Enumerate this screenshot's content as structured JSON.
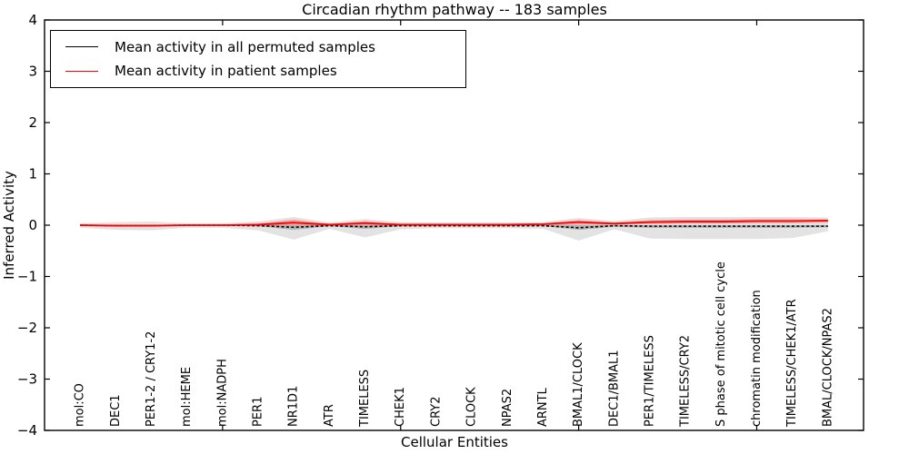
{
  "chart_data": {
    "type": "line",
    "title": "Circadian rhythm pathway -- 183 samples",
    "xlabel": "Cellular Entities",
    "ylabel": "Inferred Activity",
    "ylim": [
      -4,
      4
    ],
    "yticks": [
      -4,
      -3,
      -2,
      -1,
      0,
      1,
      2,
      3,
      4
    ],
    "ytick_labels": [
      "−4",
      "−3",
      "−2",
      "−1",
      "0",
      "1",
      "2",
      "3",
      "4"
    ],
    "x_axis_range": [
      0,
      23
    ],
    "xticks_data_coords": [
      5,
      10,
      15,
      20
    ],
    "grid": false,
    "legend_position": "upper left",
    "categories": [
      "mol:CO",
      "DEC1",
      "PER1-2 / CRY1-2",
      "mol:HEME",
      "mol:NADPH",
      "PER1",
      "NR1D1",
      "ATR",
      "TIMELESS",
      "CHEK1",
      "CRY2",
      "CLOCK",
      "NPAS2",
      "ARNTL",
      "BMAL1/CLOCK",
      "DEC1/BMAL1",
      "PER1/TIMELESS",
      "TIMELESS/CRY2",
      "S phase of mitotic cell cycle",
      "chromatin modification",
      "TIMELESS/CHEK1/ATR",
      "BMAL/CLOCK/NPAS2"
    ],
    "series": [
      {
        "name": "Mean activity in all permuted samples",
        "color": "#000000",
        "line_style": "dashed",
        "values": [
          0.0,
          -0.01,
          -0.01,
          0.0,
          0.0,
          -0.01,
          -0.04,
          -0.01,
          -0.03,
          -0.01,
          -0.01,
          -0.01,
          -0.01,
          -0.01,
          -0.05,
          -0.01,
          -0.02,
          -0.02,
          -0.02,
          -0.02,
          -0.02,
          -0.02
        ]
      },
      {
        "name": "Mean activity in patient samples",
        "color": "#ff0000",
        "line_style": "solid",
        "values": [
          0.0,
          -0.01,
          -0.01,
          0.0,
          0.0,
          0.01,
          0.05,
          0.01,
          0.04,
          0.01,
          0.01,
          0.01,
          0.01,
          0.02,
          0.06,
          0.03,
          0.06,
          0.07,
          0.07,
          0.08,
          0.08,
          0.09
        ]
      }
    ],
    "bands": [
      {
        "name": "permuted-sample-envelope",
        "color": "#c8c8c8",
        "opacity": 0.5,
        "upper": [
          0.04,
          0.06,
          0.07,
          0.04,
          0.04,
          0.07,
          0.16,
          0.05,
          0.12,
          0.06,
          0.05,
          0.05,
          0.05,
          0.06,
          0.14,
          0.08,
          0.15,
          0.16,
          0.16,
          0.16,
          0.16,
          0.15
        ],
        "lower": [
          -0.05,
          -0.09,
          -0.1,
          -0.05,
          -0.05,
          -0.1,
          -0.28,
          -0.07,
          -0.24,
          -0.08,
          -0.06,
          -0.06,
          -0.06,
          -0.07,
          -0.3,
          -0.08,
          -0.26,
          -0.27,
          -0.27,
          -0.27,
          -0.25,
          -0.12
        ]
      },
      {
        "name": "permuted-sample-dense-spread",
        "color": "#555555",
        "opacity": 0.35,
        "upper": [
          0.01,
          0.01,
          0.01,
          0.01,
          0.01,
          0.01,
          0.0,
          0.01,
          0.0,
          0.01,
          0.01,
          0.01,
          0.01,
          0.01,
          0.0,
          0.0,
          0.0,
          0.0,
          0.0,
          0.0,
          0.0,
          0.0
        ],
        "lower": [
          -0.01,
          -0.02,
          -0.02,
          -0.01,
          -0.01,
          -0.02,
          -0.09,
          -0.02,
          -0.07,
          -0.02,
          -0.02,
          -0.02,
          -0.02,
          -0.02,
          -0.09,
          -0.03,
          -0.05,
          -0.05,
          -0.05,
          -0.05,
          -0.05,
          -0.04
        ]
      },
      {
        "name": "patient-sample-spread",
        "color": "#ff3333",
        "opacity": 0.35,
        "upper": [
          0.01,
          0.01,
          0.01,
          0.01,
          0.01,
          0.03,
          0.11,
          0.02,
          0.08,
          0.02,
          0.02,
          0.02,
          0.02,
          0.03,
          0.1,
          0.05,
          0.1,
          0.11,
          0.11,
          0.12,
          0.12,
          0.11
        ],
        "lower": [
          -0.01,
          -0.02,
          -0.02,
          -0.01,
          -0.01,
          -0.01,
          0.0,
          -0.01,
          0.0,
          -0.01,
          -0.01,
          -0.01,
          -0.01,
          0.0,
          0.01,
          0.01,
          0.02,
          0.03,
          0.03,
          0.04,
          0.04,
          0.05
        ]
      }
    ]
  }
}
